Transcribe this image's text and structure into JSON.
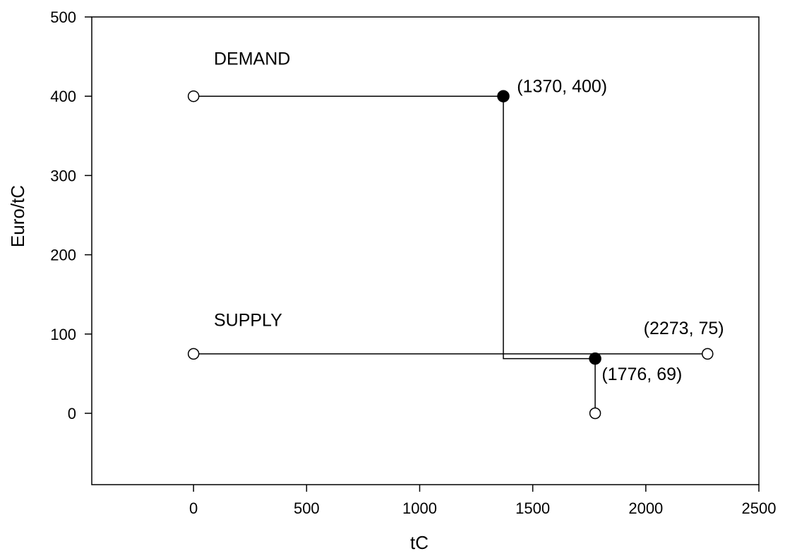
{
  "chart_data": {
    "type": "line",
    "title": "",
    "xlabel": "tC",
    "ylabel": "Euro/tC",
    "xlim": [
      -450,
      2500
    ],
    "ylim": [
      -90,
      500
    ],
    "xticks": [
      0,
      500,
      1000,
      1500,
      2000,
      2500
    ],
    "yticks": [
      0,
      100,
      200,
      300,
      400,
      500
    ],
    "grid": false,
    "series": [
      {
        "name": "DEMAND",
        "points": [
          {
            "x": 0,
            "y": 400
          },
          {
            "x": 1370,
            "y": 400
          },
          {
            "x": 1370,
            "y": 69
          },
          {
            "x": 1776,
            "y": 69
          },
          {
            "x": 1776,
            "y": 0
          }
        ]
      },
      {
        "name": "SUPPLY",
        "points": [
          {
            "x": 0,
            "y": 75
          },
          {
            "x": 2273,
            "y": 75
          }
        ]
      }
    ],
    "markers": [
      {
        "x": 0,
        "y": 400,
        "filled": false
      },
      {
        "x": 1370,
        "y": 400,
        "filled": true
      },
      {
        "x": 0,
        "y": 75,
        "filled": false
      },
      {
        "x": 2273,
        "y": 75,
        "filled": false
      },
      {
        "x": 1776,
        "y": 69,
        "filled": true
      },
      {
        "x": 1776,
        "y": 0,
        "filled": false
      }
    ],
    "annotations": [
      {
        "text": "DEMAND",
        "x": 90,
        "y": 440
      },
      {
        "text": "(1370, 400)",
        "x": 1430,
        "y": 405
      },
      {
        "text": "SUPPLY",
        "x": 90,
        "y": 110
      },
      {
        "text": "(2273, 75)",
        "x": 1990,
        "y": 100
      },
      {
        "text": "(1776, 69)",
        "x": 1805,
        "y": 42
      }
    ]
  }
}
